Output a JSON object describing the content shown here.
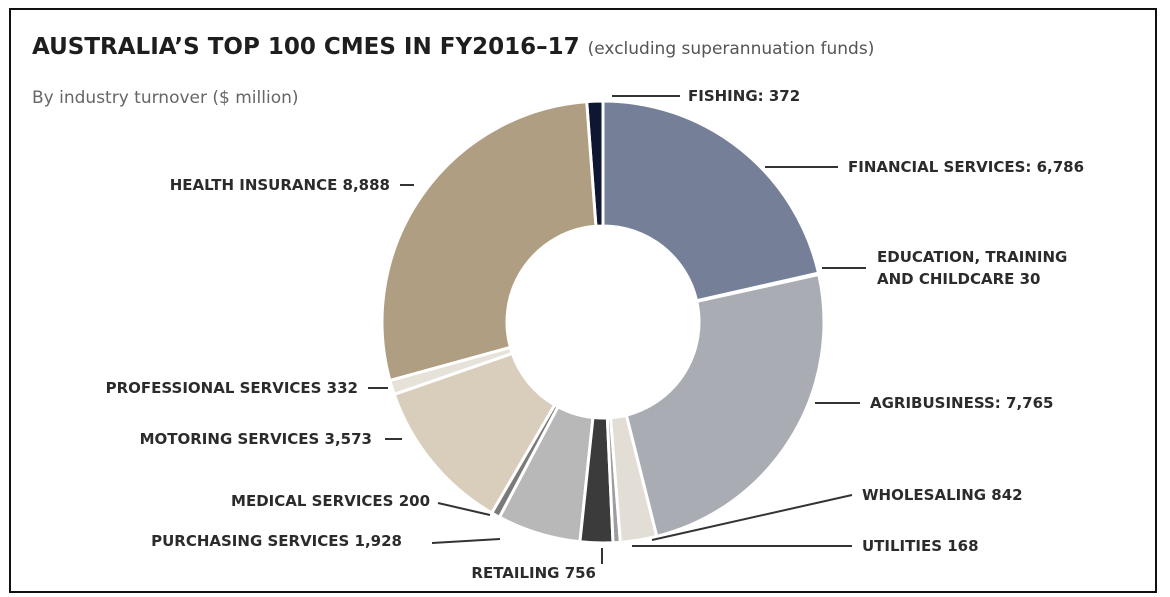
{
  "chart_data": {
    "type": "pie",
    "donut": true,
    "title": "AUSTRALIA’S TOP 100 CMES IN FY2016–17",
    "title_note": "(excluding superannuation funds)",
    "subtitle": "By industry turnover ($ million)",
    "categories": [
      "FINANCIAL SERVICES: 6,786",
      "EDUCATION, TRAINING AND CHILDCARE 30",
      "AGRIBUSINESS: 7,765",
      "WHOLESALING 842",
      "UTILITIES 168",
      "RETAILING 756",
      "PURCHASING SERVICES 1,928",
      "MEDICAL SERVICES 200",
      "MOTORING SERVICES 3,573",
      "PROFESSIONAL SERVICES 332",
      "HEALTH INSURANCE 8,888",
      "FISHING: 372"
    ],
    "values": [
      6786,
      30,
      7765,
      842,
      168,
      756,
      1928,
      200,
      3573,
      332,
      8888,
      372
    ],
    "colors": [
      "#757f98",
      "#e6e6e6",
      "#a9adb3",
      "#e2ded6",
      "#9d9d9d",
      "#3b3b3b",
      "#b8b8b8",
      "#7a7a7a",
      "#d9cdbb",
      "#e6e1d9",
      "#b09e83",
      "#0f1631"
    ]
  }
}
